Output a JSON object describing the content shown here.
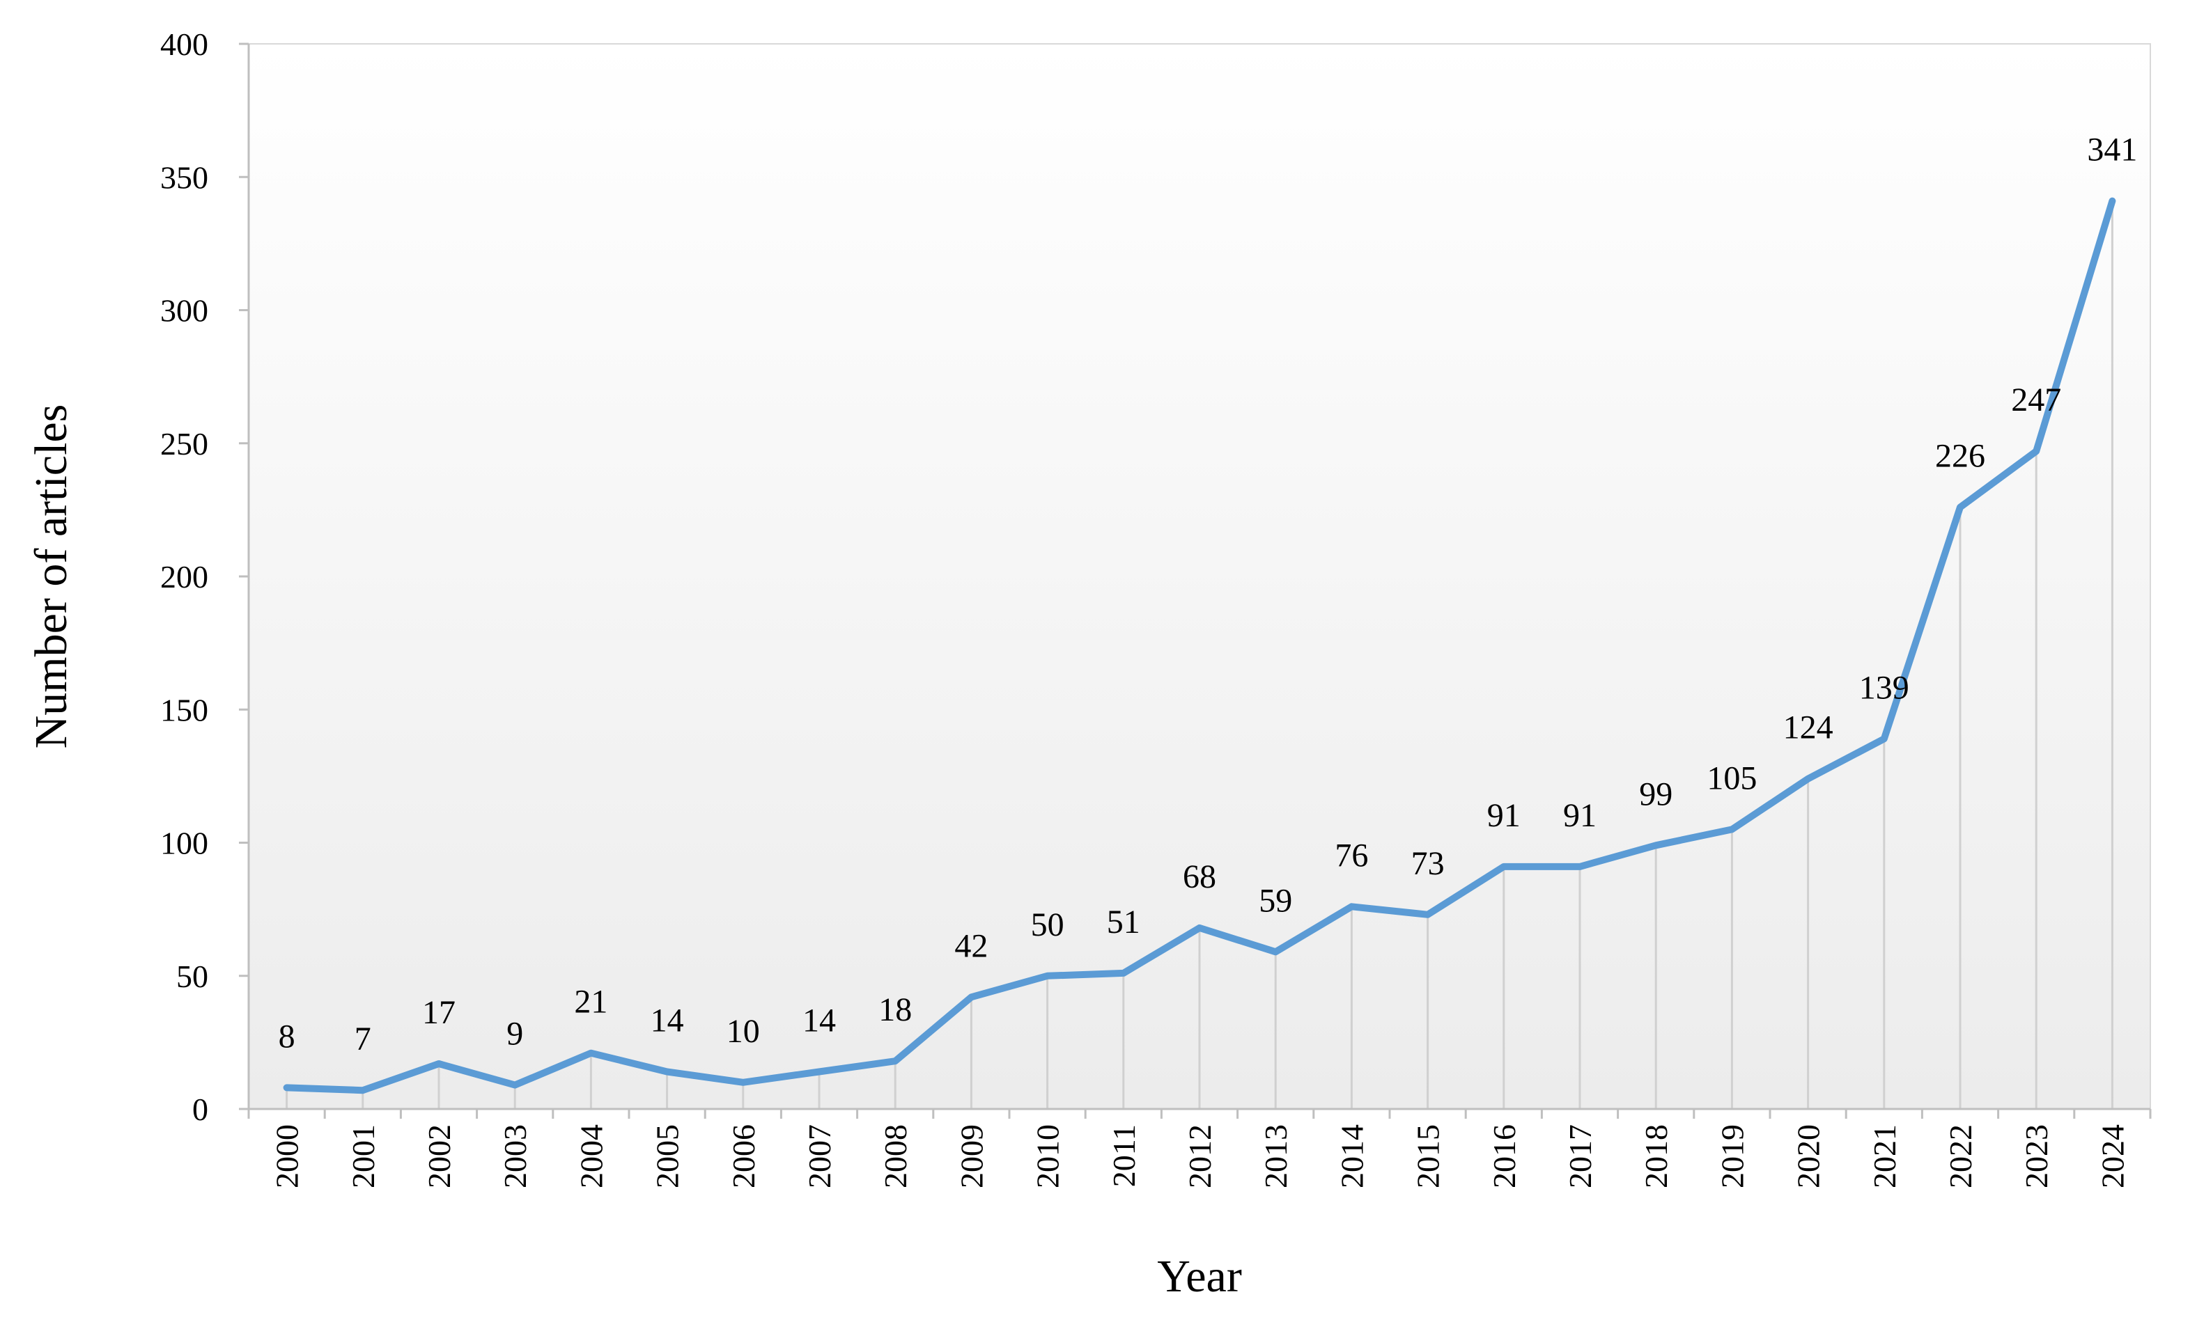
{
  "chart_data": {
    "type": "line",
    "title": "",
    "xlabel": "Year",
    "ylabel": "Number of articles",
    "ylim": [
      0,
      400
    ],
    "yticks": [
      0,
      50,
      100,
      150,
      200,
      250,
      300,
      350,
      400
    ],
    "categories": [
      "2000",
      "2001",
      "2002",
      "2003",
      "2004",
      "2005",
      "2006",
      "2007",
      "2008",
      "2009",
      "2010",
      "2011",
      "2012",
      "2013",
      "2014",
      "2015",
      "2016",
      "2017",
      "2018",
      "2019",
      "2020",
      "2021",
      "2022",
      "2023",
      "2024"
    ],
    "series": [
      {
        "name": "Number of articles",
        "values": [
          8,
          7,
          17,
          9,
          21,
          14,
          10,
          14,
          18,
          42,
          50,
          51,
          68,
          59,
          76,
          73,
          91,
          91,
          99,
          105,
          124,
          139,
          226,
          247,
          341
        ],
        "color": "#5b9bd5"
      }
    ],
    "data_labels": [
      "8",
      "7",
      "17",
      "9",
      "21",
      "14",
      "10",
      "14",
      "18",
      "42",
      "50",
      "51",
      "68",
      "59",
      "76",
      "73",
      "91",
      "91",
      "99",
      "105",
      "124",
      "139",
      "226",
      "247",
      "341"
    ],
    "drop_lines": true,
    "grid": false,
    "background_gradient": [
      "#ffffff",
      "#ececec"
    ]
  }
}
